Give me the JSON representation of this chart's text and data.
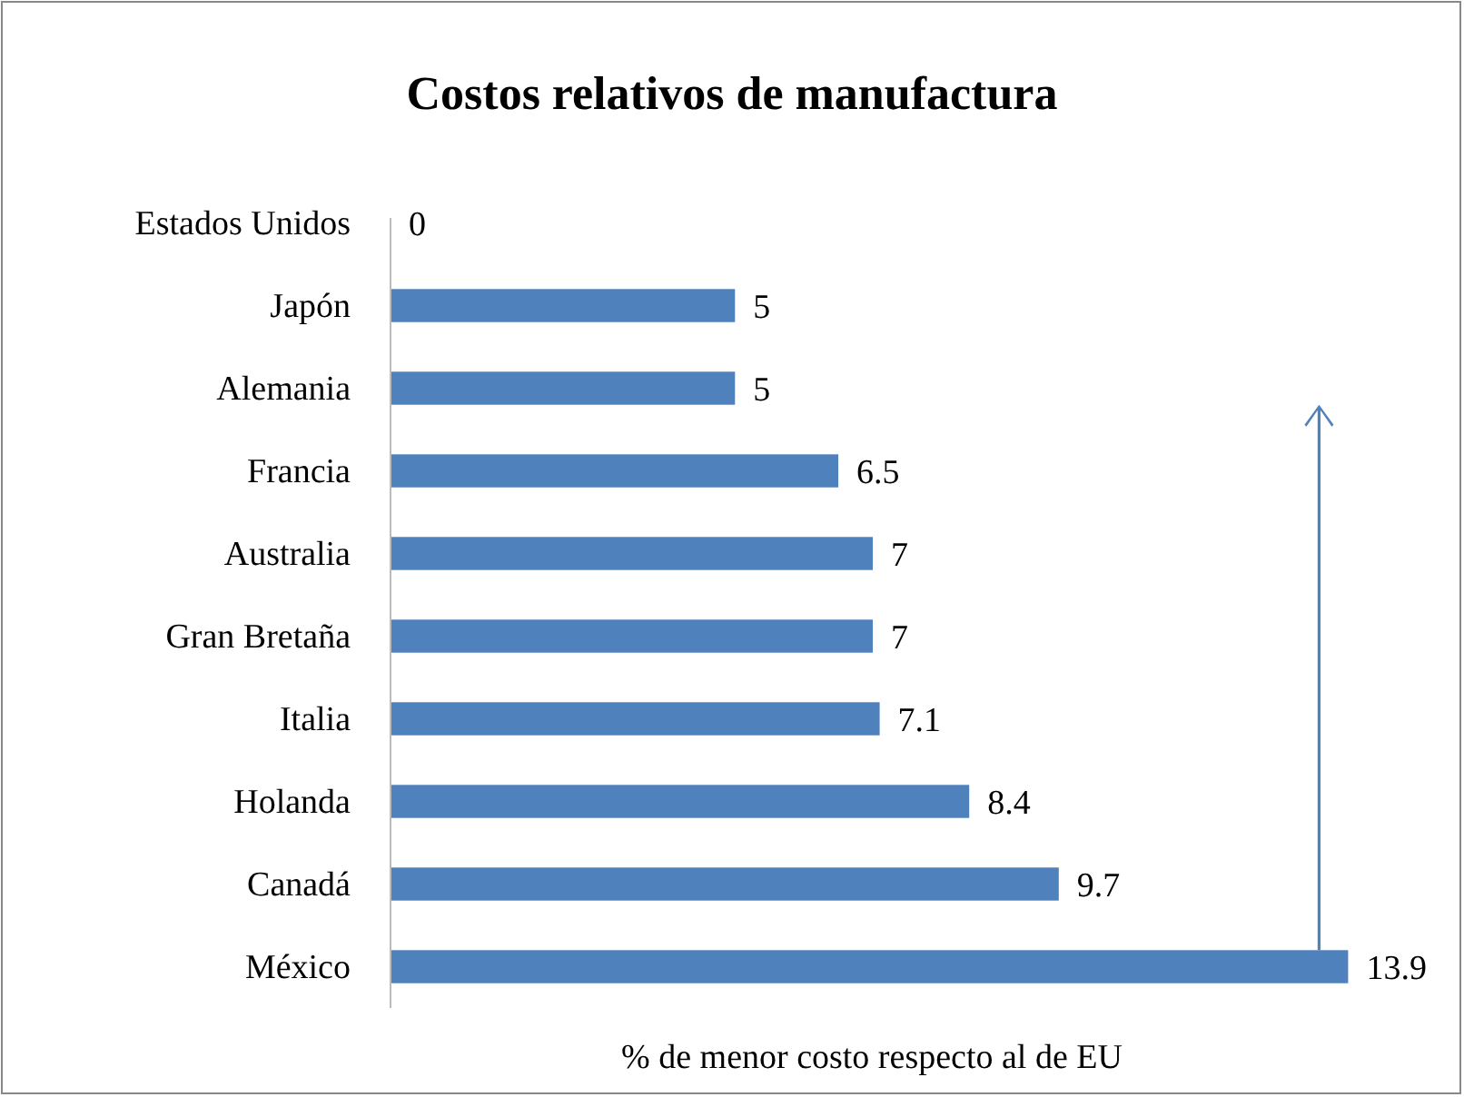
{
  "chart_data": {
    "type": "bar",
    "orientation": "horizontal",
    "title": "Costos relativos de manufactura",
    "xlabel": "% de menor costo respecto al de EU",
    "categories": [
      "Estados Unidos",
      "Japón",
      "Alemania",
      "Francia",
      "Australia",
      "Gran Bretaña",
      "Italia",
      "Holanda",
      "Canadá",
      "México"
    ],
    "values": [
      0,
      5,
      5,
      6.5,
      7,
      7,
      7.1,
      8.4,
      9.7,
      13.9
    ],
    "color": "#4f81bd",
    "xlim": [
      0,
      14
    ],
    "data_labels": true,
    "tick_labels": "y"
  }
}
